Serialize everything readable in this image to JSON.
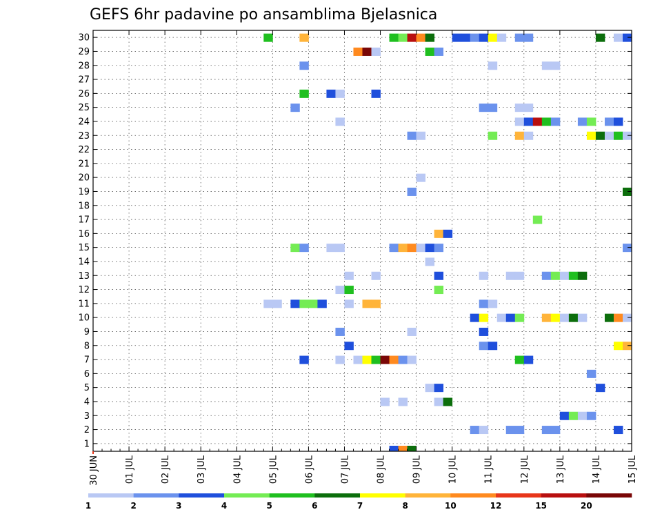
{
  "chart_data": {
    "type": "heatmap",
    "title": "GEFS 6hr padavine po ansamblima Bjelasnica",
    "xlabel": "",
    "ylabel": "",
    "x_tick_labels": [
      "30 JUN",
      "01 JUL",
      "02 JUL",
      "03 JUL",
      "04 JUL",
      "05 JUL",
      "06 JUL",
      "07 JUL",
      "08 JUL",
      "09 JUL",
      "10 JUL",
      "11 JUL",
      "12 JUL",
      "13 JUL",
      "14 JUL",
      "15 JUL"
    ],
    "y_tick_labels": [
      "1",
      "2",
      "3",
      "4",
      "5",
      "6",
      "7",
      "8",
      "9",
      "10",
      "11",
      "12",
      "13",
      "14",
      "15",
      "16",
      "17",
      "18",
      "19",
      "20",
      "21",
      "22",
      "23",
      "24",
      "25",
      "26",
      "27",
      "28",
      "29",
      "30"
    ],
    "xlim": [
      0,
      60
    ],
    "ylim": [
      0,
      30
    ],
    "x_unit": "6-hour steps from 30 JUN",
    "grid": true,
    "levels": [
      "1",
      "2",
      "3",
      "4",
      "5",
      "6",
      "7",
      "8",
      "10",
      "12",
      "15",
      "20"
    ],
    "colors": [
      "#b9c8f4",
      "#6b92ed",
      "#1f4fdc",
      "#74ec54",
      "#1fbf1f",
      "#0c6e0c",
      "#ffff00",
      "#ffb43a",
      "#ff8a1f",
      "#e8361a",
      "#b80f0f",
      "#7a0707"
    ],
    "cells": [
      [
        19,
        30,
        4
      ],
      [
        23,
        30,
        7
      ],
      [
        33,
        30,
        4
      ],
      [
        34,
        30,
        3
      ],
      [
        35,
        30,
        10
      ],
      [
        36,
        30,
        8
      ],
      [
        37,
        30,
        5
      ],
      [
        40,
        30,
        2
      ],
      [
        41,
        30,
        2
      ],
      [
        42,
        30,
        1
      ],
      [
        43,
        30,
        2
      ],
      [
        44,
        30,
        6
      ],
      [
        45,
        30,
        0
      ],
      [
        47,
        30,
        1
      ],
      [
        48,
        30,
        1
      ],
      [
        56,
        30,
        5
      ],
      [
        58,
        30,
        0
      ],
      [
        59,
        30,
        2
      ],
      [
        29,
        29,
        8
      ],
      [
        30,
        29,
        11
      ],
      [
        31,
        29,
        0
      ],
      [
        37,
        29,
        4
      ],
      [
        38,
        29,
        1
      ],
      [
        23,
        28,
        1
      ],
      [
        44,
        28,
        0
      ],
      [
        50,
        28,
        0
      ],
      [
        51,
        28,
        0
      ],
      [
        23,
        26,
        4
      ],
      [
        26,
        26,
        2
      ],
      [
        27,
        26,
        0
      ],
      [
        31,
        26,
        2
      ],
      [
        22,
        25,
        1
      ],
      [
        43,
        25,
        1
      ],
      [
        44,
        25,
        1
      ],
      [
        47,
        25,
        0
      ],
      [
        48,
        25,
        0
      ],
      [
        27,
        24,
        0
      ],
      [
        47,
        24,
        0
      ],
      [
        48,
        24,
        2
      ],
      [
        49,
        24,
        10
      ],
      [
        50,
        24,
        4
      ],
      [
        51,
        24,
        1
      ],
      [
        54,
        24,
        1
      ],
      [
        55,
        24,
        3
      ],
      [
        57,
        24,
        1
      ],
      [
        58,
        24,
        2
      ],
      [
        35,
        23,
        1
      ],
      [
        36,
        23,
        0
      ],
      [
        44,
        23,
        3
      ],
      [
        47,
        23,
        7
      ],
      [
        48,
        23,
        0
      ],
      [
        55,
        23,
        6
      ],
      [
        56,
        23,
        5
      ],
      [
        57,
        23,
        0
      ],
      [
        58,
        23,
        4
      ],
      [
        59,
        23,
        0
      ],
      [
        36,
        20,
        0
      ],
      [
        35,
        19,
        1
      ],
      [
        59,
        19,
        5
      ],
      [
        49,
        17,
        3
      ],
      [
        38,
        16,
        7
      ],
      [
        39,
        16,
        2
      ],
      [
        22,
        15,
        3
      ],
      [
        23,
        15,
        1
      ],
      [
        26,
        15,
        0
      ],
      [
        27,
        15,
        0
      ],
      [
        33,
        15,
        1
      ],
      [
        34,
        15,
        7
      ],
      [
        35,
        15,
        8
      ],
      [
        36,
        15,
        0
      ],
      [
        37,
        15,
        2
      ],
      [
        38,
        15,
        1
      ],
      [
        59,
        15,
        1
      ],
      [
        37,
        14,
        0
      ],
      [
        28,
        13,
        0
      ],
      [
        31,
        13,
        0
      ],
      [
        38,
        13,
        2
      ],
      [
        43,
        13,
        0
      ],
      [
        46,
        13,
        0
      ],
      [
        47,
        13,
        0
      ],
      [
        50,
        13,
        1
      ],
      [
        51,
        13,
        3
      ],
      [
        52,
        13,
        0
      ],
      [
        53,
        13,
        4
      ],
      [
        54,
        13,
        5
      ],
      [
        27,
        12,
        0
      ],
      [
        28,
        12,
        4
      ],
      [
        38,
        12,
        3
      ],
      [
        19,
        11,
        0
      ],
      [
        20,
        11,
        0
      ],
      [
        22,
        11,
        2
      ],
      [
        23,
        11,
        3
      ],
      [
        24,
        11,
        3
      ],
      [
        25,
        11,
        2
      ],
      [
        28,
        11,
        0
      ],
      [
        30,
        11,
        7
      ],
      [
        31,
        11,
        7
      ],
      [
        43,
        11,
        1
      ],
      [
        44,
        11,
        0
      ],
      [
        42,
        10,
        2
      ],
      [
        43,
        10,
        6
      ],
      [
        45,
        10,
        0
      ],
      [
        46,
        10,
        2
      ],
      [
        47,
        10,
        3
      ],
      [
        50,
        10,
        7
      ],
      [
        51,
        10,
        6
      ],
      [
        52,
        10,
        0
      ],
      [
        53,
        10,
        5
      ],
      [
        54,
        10,
        0
      ],
      [
        57,
        10,
        5
      ],
      [
        58,
        10,
        8
      ],
      [
        59,
        10,
        0
      ],
      [
        27,
        9,
        1
      ],
      [
        35,
        9,
        0
      ],
      [
        43,
        9,
        2
      ],
      [
        28,
        8,
        2
      ],
      [
        43,
        8,
        1
      ],
      [
        44,
        8,
        2
      ],
      [
        58,
        8,
        6
      ],
      [
        59,
        8,
        7
      ],
      [
        23,
        7,
        2
      ],
      [
        27,
        7,
        0
      ],
      [
        29,
        7,
        0
      ],
      [
        30,
        7,
        6
      ],
      [
        31,
        7,
        4
      ],
      [
        32,
        7,
        11
      ],
      [
        33,
        7,
        8
      ],
      [
        34,
        7,
        1
      ],
      [
        35,
        7,
        0
      ],
      [
        47,
        7,
        4
      ],
      [
        48,
        7,
        2
      ],
      [
        55,
        6,
        1
      ],
      [
        37,
        5,
        0
      ],
      [
        38,
        5,
        2
      ],
      [
        56,
        5,
        2
      ],
      [
        32,
        4,
        0
      ],
      [
        34,
        4,
        0
      ],
      [
        38,
        4,
        0
      ],
      [
        39,
        4,
        5
      ],
      [
        52,
        3,
        2
      ],
      [
        53,
        3,
        3
      ],
      [
        54,
        3,
        0
      ],
      [
        55,
        3,
        1
      ],
      [
        42,
        2,
        1
      ],
      [
        43,
        2,
        0
      ],
      [
        46,
        2,
        1
      ],
      [
        47,
        2,
        1
      ],
      [
        50,
        2,
        1
      ],
      [
        51,
        2,
        1
      ],
      [
        58,
        2,
        2
      ]
    ],
    "bottom_strip": [
      [
        33,
        2
      ],
      [
        34,
        8
      ],
      [
        35,
        5
      ]
    ]
  }
}
